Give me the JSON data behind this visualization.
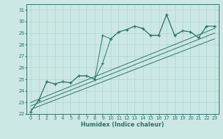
{
  "xlabel": "Humidex (Indice chaleur)",
  "bg_color": "#cce8e4",
  "grid_color": "#aad4d0",
  "line_color": "#2d7068",
  "xlim": [
    -0.5,
    23.5
  ],
  "ylim": [
    22,
    31.5
  ],
  "yticks": [
    22,
    23,
    24,
    25,
    26,
    27,
    28,
    29,
    30,
    31
  ],
  "xticks": [
    0,
    1,
    2,
    3,
    4,
    5,
    6,
    7,
    8,
    9,
    10,
    11,
    12,
    13,
    14,
    15,
    16,
    17,
    18,
    19,
    20,
    21,
    22,
    23
  ],
  "series1_x": [
    0,
    1,
    2,
    3,
    4,
    5,
    6,
    7,
    8,
    9,
    10,
    11,
    12,
    13,
    14,
    15,
    16,
    17,
    18,
    19,
    20,
    21,
    22,
    23
  ],
  "series1_y": [
    22.2,
    23.2,
    24.8,
    24.6,
    24.8,
    24.7,
    25.3,
    25.3,
    25.0,
    28.8,
    28.5,
    29.1,
    29.3,
    29.6,
    29.4,
    28.8,
    28.8,
    30.6,
    28.8,
    29.2,
    29.1,
    28.6,
    29.6,
    29.6
  ],
  "series2_x": [
    0,
    1,
    2,
    3,
    4,
    5,
    6,
    7,
    8,
    9,
    10,
    11,
    12,
    13,
    14,
    15,
    16,
    17,
    18,
    19,
    20,
    21,
    22,
    23
  ],
  "series2_y": [
    22.2,
    23.2,
    24.8,
    24.6,
    24.8,
    24.7,
    25.3,
    25.3,
    25.0,
    26.4,
    28.5,
    29.1,
    29.3,
    29.6,
    29.4,
    28.8,
    28.8,
    30.6,
    28.8,
    29.2,
    29.1,
    28.6,
    29.6,
    29.6
  ],
  "trend1_x": [
    0,
    23
  ],
  "trend1_y": [
    22.4,
    28.5
  ],
  "trend2_x": [
    0,
    23
  ],
  "trend2_y": [
    22.7,
    29.0
  ],
  "trend3_x": [
    0,
    23
  ],
  "trend3_y": [
    23.0,
    29.4
  ],
  "xlabel_fontsize": 6,
  "tick_fontsize": 5,
  "line_width": 0.7,
  "marker_size": 3.0
}
